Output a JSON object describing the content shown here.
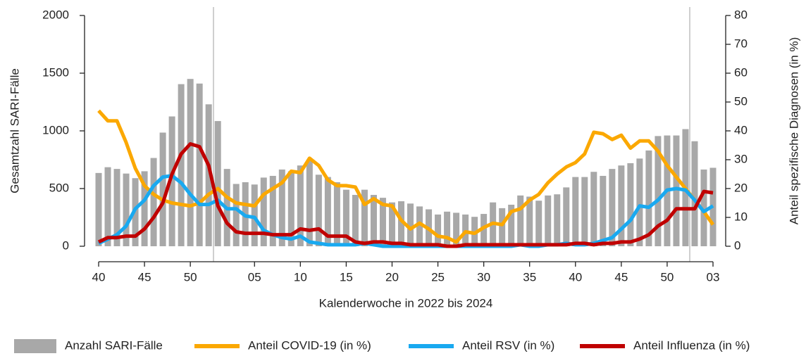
{
  "chart_data": {
    "type": "bar",
    "x_label": "Kalenderwoche in 2022 bis 2024",
    "y_label": "Gesamtzahl SARI-Fälle",
    "y2_label": "Anteil spezifische Diagnosen (in %)",
    "categories": [
      "40",
      null,
      null,
      null,
      null,
      "45",
      null,
      null,
      null,
      null,
      "50",
      null,
      null,
      null,
      null,
      null,
      null,
      "05",
      null,
      null,
      null,
      null,
      "10",
      null,
      null,
      null,
      null,
      "15",
      null,
      null,
      null,
      null,
      "20",
      null,
      null,
      null,
      null,
      "25",
      null,
      null,
      null,
      null,
      "30",
      null,
      null,
      null,
      null,
      "35",
      null,
      null,
      null,
      null,
      "40",
      null,
      null,
      null,
      null,
      "45",
      null,
      null,
      null,
      null,
      "50",
      null,
      null,
      null,
      null,
      "03"
    ],
    "ylim": [
      0,
      2000
    ],
    "yticks": [
      0,
      500,
      1000,
      1500,
      2000
    ],
    "y2lim": [
      0,
      80
    ],
    "y2ticks": [
      0,
      10,
      20,
      30,
      40,
      50,
      60,
      70,
      80
    ],
    "legend": "bottom",
    "series": [
      {
        "name": "Anzahl SARI-Fälle",
        "type": "bar",
        "color": "#a8a8a8",
        "values": [
          635,
          685,
          670,
          630,
          590,
          650,
          765,
          985,
          1125,
          1405,
          1450,
          1410,
          1230,
          1085,
          670,
          540,
          555,
          535,
          595,
          610,
          665,
          650,
          700,
          740,
          620,
          600,
          555,
          490,
          445,
          490,
          445,
          420,
          380,
          390,
          370,
          345,
          320,
          275,
          300,
          290,
          275,
          255,
          280,
          380,
          330,
          360,
          440,
          430,
          395,
          440,
          450,
          510,
          600,
          600,
          645,
          610,
          670,
          700,
          720,
          760,
          830,
          955,
          960,
          960,
          1015,
          910,
          665,
          680
        ]
      },
      {
        "name": "Anteil COVID-19 (in %)",
        "type": "line",
        "axis": "y2",
        "color": "#fba800",
        "values": [
          47,
          43.5,
          43.5,
          36,
          27,
          21,
          18,
          16,
          15,
          14.5,
          14,
          15,
          18,
          20,
          17,
          15,
          14.5,
          14,
          18,
          20,
          22,
          26,
          25.5,
          30.5,
          28,
          23,
          21,
          21,
          20.5,
          14.5,
          16.5,
          14.5,
          14,
          9,
          6,
          8,
          6,
          3.5,
          3,
          1.5,
          5,
          4.5,
          6.5,
          8,
          7.5,
          12,
          13,
          16,
          18,
          22,
          25,
          27.5,
          29,
          32,
          39.5,
          39,
          37,
          38.5,
          34,
          36.5,
          36.5,
          33,
          28,
          24,
          20,
          16,
          12,
          7.5
        ]
      },
      {
        "name": "Anteil RSV (in %)",
        "type": "line",
        "axis": "y2",
        "color": "#19a9f0",
        "values": [
          1,
          2.5,
          4,
          7,
          13,
          16,
          21,
          24,
          24.5,
          22,
          18,
          14.5,
          14.5,
          16,
          13,
          13,
          10.5,
          10,
          5.5,
          4,
          3,
          2.5,
          3.5,
          1.5,
          1,
          0.5,
          0.5,
          0.5,
          0.5,
          1,
          0.5,
          0,
          0,
          0,
          0,
          0,
          0,
          0,
          0,
          0,
          0,
          0,
          0,
          0,
          0,
          0,
          0.5,
          0,
          0,
          0.5,
          0.5,
          1,
          0.5,
          0.5,
          1,
          2,
          3,
          6,
          9,
          14,
          13.5,
          16,
          19.5,
          20,
          19.5,
          16,
          12,
          14
        ]
      },
      {
        "name": "Anteil Influenza (in %)",
        "type": "line",
        "axis": "y2",
        "color": "#c00000",
        "values": [
          1.5,
          3,
          3,
          3.5,
          3.5,
          6,
          10,
          15,
          25,
          32,
          35.5,
          34.5,
          28,
          14,
          8,
          5,
          4.5,
          4.5,
          4.5,
          4,
          4,
          4,
          6,
          5.5,
          6,
          3.5,
          3.5,
          3.5,
          1.5,
          1,
          1.5,
          1.5,
          1,
          1,
          0.5,
          0.5,
          0.5,
          0.5,
          0,
          0,
          0.5,
          0.5,
          0.5,
          0.5,
          0.5,
          0.5,
          0.5,
          0.5,
          0.5,
          0.5,
          0.5,
          0.5,
          1,
          1,
          0.5,
          1,
          1,
          1.5,
          1.5,
          2.5,
          4,
          7,
          9,
          13,
          13,
          13,
          19,
          18.5
        ]
      }
    ]
  }
}
